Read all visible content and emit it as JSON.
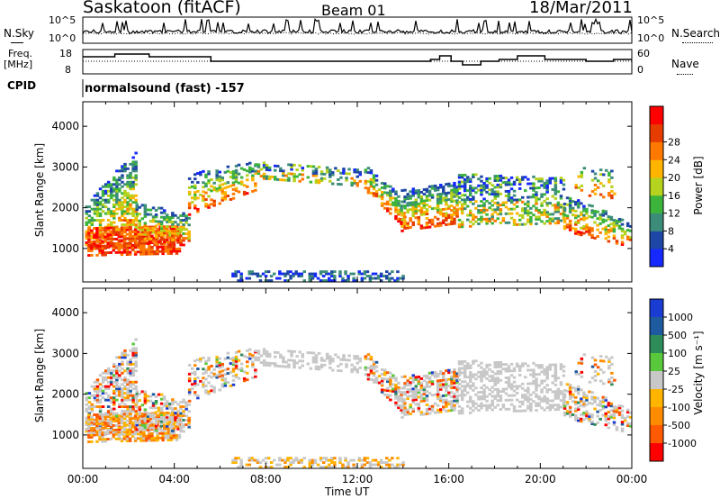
{
  "header": {
    "title": "Saskatoon (fitACF)",
    "beam": "Beam 01",
    "date": "18/Mar/2011"
  },
  "noise_panel": {
    "left_label": "N.Sky",
    "right_label": "N.Search",
    "left_ticks": [
      "10^5",
      "10^0"
    ],
    "right_ticks": [
      "10^5",
      "10^0"
    ]
  },
  "freq_panel": {
    "left_label_1": "Freq.",
    "left_label_2": "[MHz]",
    "left_ticks": [
      "18",
      "8"
    ],
    "right_ticks": [
      "60",
      "0"
    ],
    "right_label": "Nave"
  },
  "cpid": {
    "label": "CPID",
    "value": "normalsound (fast) -157"
  },
  "chart_data": [
    {
      "type": "heatmap",
      "name": "power",
      "ylabel": "Slant Range [km]",
      "yticks": [
        "1000",
        "2000",
        "3000",
        "4000"
      ],
      "ylim": [
        180,
        4600
      ],
      "xlim": [
        0,
        24
      ],
      "colorbar": {
        "label": "Power [dB]",
        "ticks": [
          "4",
          "8",
          "12",
          "16",
          "20",
          "24",
          "28"
        ],
        "colors": [
          "#1428ff",
          "#1e46a6",
          "#3c8c7a",
          "#3cb43c",
          "#b4d21e",
          "#ffb400",
          "#ff7800",
          "#e63c00",
          "#ff0000"
        ]
      }
    },
    {
      "type": "heatmap",
      "name": "velocity",
      "ylabel": "Slant Range [km]",
      "yticks": [
        "1000",
        "2000",
        "3000",
        "4000"
      ],
      "ylim": [
        180,
        4600
      ],
      "xlim": [
        0,
        24
      ],
      "xticks": [
        "00:00",
        "04:00",
        "08:00",
        "12:00",
        "16:00",
        "20:00",
        "00:00"
      ],
      "xlabel": "Time UT",
      "colorbar": {
        "label": "Velocity [m s⁻¹]",
        "ticks": [
          "1000",
          "500",
          "100",
          "25",
          "-25",
          "-100",
          "-500",
          "-1000"
        ],
        "colors": [
          "#1a3cd2",
          "#1e5aa0",
          "#2e8c5a",
          "#5ac83c",
          "#c8c8c8",
          "#ffb400",
          "#ff8c00",
          "#ff5a00",
          "#ff0000"
        ]
      }
    }
  ],
  "colors": {
    "axis": "#000000",
    "ground_scatter": "#a0a0a0"
  }
}
